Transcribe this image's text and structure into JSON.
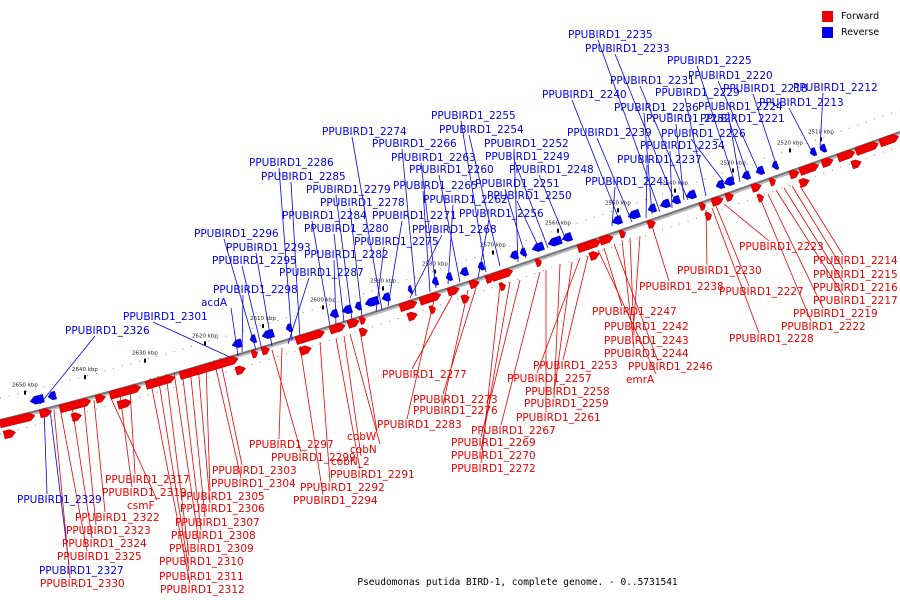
{
  "caption": "Pseudomonas putida BIRD-1, complete genome. - 0..5731541",
  "legend": [
    {
      "label": "Forward",
      "color": "#ee0000"
    },
    {
      "label": "Reverse",
      "color": "#0000ee"
    }
  ],
  "colors": {
    "forward": "#ee0000",
    "reverse": "#0000ee",
    "backbone": "#777777"
  },
  "ticks": [
    "2510 kbp",
    "2520 kbp",
    "2530 kbp",
    "2540 kbp",
    "2550 kbp",
    "2560 kbp",
    "2570 kbp",
    "2580 kbp",
    "2590 kbp",
    "2600 kbp",
    "2610 kbp",
    "2620 kbp",
    "2630 kbp",
    "2640 kbp",
    "2650 kbp"
  ],
  "reverse_labels": [
    "PPUBIRD1_2212",
    "PPUBIRD1_2213",
    "PPUBIRD1_2218",
    "PPUBIRD1_2220",
    "PPUBIRD1_2221",
    "PPUBIRD1_2224",
    "PPUBIRD1_2225",
    "PPUBIRD1_2226",
    "PPUBIRD1_2229",
    "PPUBIRD1_2231",
    "PPUBIRD1_2232",
    "PPUBIRD1_2233",
    "PPUBIRD1_2234",
    "PPUBIRD1_2235",
    "PPUBIRD1_2236",
    "PPUBIRD1_2237",
    "PPUBIRD1_2239",
    "PPUBIRD1_2240",
    "PPUBIRD1_2241",
    "PPUBIRD1_2248",
    "PPUBIRD1_2249",
    "PPUBIRD1_2250",
    "PPUBIRD1_2251",
    "PPUBIRD1_2252",
    "PPUBIRD1_2254",
    "PPUBIRD1_2255",
    "PPUBIRD1_2256",
    "PPUBIRD1_2260",
    "PPUBIRD1_2262",
    "PPUBIRD1_2263",
    "PPUBIRD1_2265",
    "PPUBIRD1_2266",
    "PPUBIRD1_2268",
    "PPUBIRD1_2271",
    "PPUBIRD1_2274",
    "PPUBIRD1_2275",
    "PPUBIRD1_2278",
    "PPUBIRD1_2279",
    "PPUBIRD1_2280",
    "PPUBIRD1_2282",
    "PPUBIRD1_2284",
    "PPUBIRD1_2285",
    "PPUBIRD1_2286",
    "PPUBIRD1_2287",
    "PPUBIRD1_2293",
    "PPUBIRD1_2295",
    "PPUBIRD1_2296",
    "PPUBIRD1_2298",
    "acdA",
    "PPUBIRD1_2301",
    "PPUBIRD1_2326",
    "PPUBIRD1_2329",
    "PPUBIRD1_2327"
  ],
  "forward_labels": [
    "PPUBIRD1_2214",
    "PPUBIRD1_2215",
    "PPUBIRD1_2216",
    "PPUBIRD1_2217",
    "PPUBIRD1_2219",
    "PPUBIRD1_2222",
    "PPUBIRD1_2223",
    "PPUBIRD1_2227",
    "PPUBIRD1_2228",
    "PPUBIRD1_2230",
    "PPUBIRD1_2238",
    "PPUBIRD1_2242",
    "PPUBIRD1_2243",
    "PPUBIRD1_2244",
    "PPUBIRD1_2246",
    "PPUBIRD1_2247",
    "emrA",
    "PPUBIRD1_2253",
    "PPUBIRD1_2257",
    "PPUBIRD1_2258",
    "PPUBIRD1_2259",
    "PPUBIRD1_2261",
    "PPUBIRD1_2267",
    "PPUBIRD1_2269",
    "PPUBIRD1_2270",
    "PPUBIRD1_2272",
    "PPUBIRD1_2273",
    "PPUBIRD1_2276",
    "PPUBIRD1_2277",
    "PPUBIRD1_2283",
    "cobW",
    "cobN",
    "cobN_2",
    "PPUBIRD1_2291",
    "PPUBIRD1_2292",
    "PPUBIRD1_2294",
    "PPUBIRD1_2297",
    "PPUBIRD1_2299",
    "PPUBIRD1_2303",
    "PPUBIRD1_2304",
    "PPUBIRD1_2305",
    "PPUBIRD1_2306",
    "PPUBIRD1_2307",
    "PPUBIRD1_2308",
    "PPUBIRD1_2309",
    "PPUBIRD1_2310",
    "PPUBIRD1_2311",
    "PPUBIRD1_2312",
    "PPUBIRD1_2317",
    "PPUBIRD1_2319",
    "csmF",
    "PPUBIRD1_2322",
    "PPUBIRD1_2323",
    "PPUBIRD1_2324",
    "PPUBIRD1_2325",
    "PPUBIRD1_2330"
  ]
}
